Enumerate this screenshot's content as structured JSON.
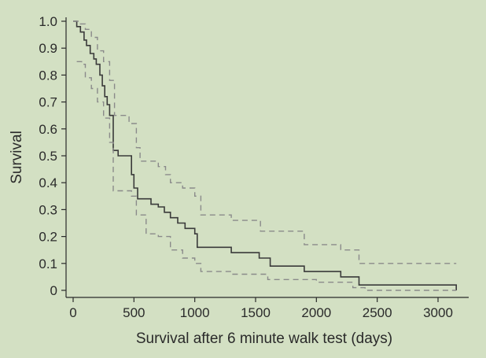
{
  "chart_data": {
    "type": "line",
    "xlabel": "Survival after 6 minute walk test (days)",
    "ylabel": "Survival",
    "xlim": [
      0,
      3150
    ],
    "ylim": [
      0,
      1.0
    ],
    "x_ticks": [
      "0",
      "500",
      "1000",
      "1500",
      "2000",
      "2500",
      "3000"
    ],
    "y_ticks": [
      "0",
      "0.1",
      "0.2",
      "0.3",
      "0.4",
      "0.5",
      "0.6",
      "0.7",
      "0.8",
      "0.9",
      "1.0"
    ],
    "grid": false,
    "legend": false,
    "colors": {
      "background": "#d3e0c3",
      "estimate": "#3a3a3a",
      "ci": "#8a8a8a",
      "axis": "#2a2a2a"
    },
    "series": [
      {
        "role": "estimate",
        "style": "solid-step",
        "x": [
          0,
          30,
          60,
          90,
          110,
          140,
          170,
          190,
          220,
          240,
          260,
          280,
          300,
          330,
          370,
          480,
          500,
          530,
          640,
          700,
          750,
          800,
          860,
          920,
          1000,
          1020,
          1300,
          1530,
          1620,
          1900,
          2200,
          2350,
          3130,
          3150
        ],
        "y": [
          1.0,
          0.98,
          0.96,
          0.93,
          0.91,
          0.88,
          0.86,
          0.84,
          0.8,
          0.76,
          0.72,
          0.69,
          0.65,
          0.52,
          0.5,
          0.43,
          0.38,
          0.34,
          0.32,
          0.31,
          0.29,
          0.27,
          0.25,
          0.23,
          0.21,
          0.16,
          0.14,
          0.12,
          0.09,
          0.07,
          0.05,
          0.02,
          0.02,
          0.0
        ]
      },
      {
        "role": "ci-upper",
        "style": "dashed-step",
        "x": [
          0,
          60,
          100,
          150,
          200,
          250,
          300,
          340,
          460,
          520,
          550,
          700,
          760,
          800,
          900,
          1000,
          1050,
          1300,
          1540,
          1900,
          2200,
          2350,
          3150
        ],
        "y": [
          1.0,
          0.99,
          0.97,
          0.94,
          0.89,
          0.85,
          0.78,
          0.65,
          0.62,
          0.53,
          0.48,
          0.46,
          0.43,
          0.4,
          0.38,
          0.35,
          0.28,
          0.26,
          0.22,
          0.17,
          0.15,
          0.1,
          0.1
        ]
      },
      {
        "role": "ci-lower",
        "style": "dashed-step",
        "x": [
          30,
          70,
          100,
          150,
          200,
          250,
          300,
          330,
          480,
          520,
          600,
          700,
          800,
          900,
          1000,
          1050,
          1300,
          1600,
          2000,
          2300,
          2400,
          3150
        ],
        "y": [
          0.85,
          0.84,
          0.79,
          0.75,
          0.7,
          0.64,
          0.55,
          0.37,
          0.35,
          0.28,
          0.21,
          0.2,
          0.15,
          0.12,
          0.1,
          0.07,
          0.06,
          0.04,
          0.03,
          0.01,
          0.0,
          0.0
        ]
      }
    ]
  }
}
